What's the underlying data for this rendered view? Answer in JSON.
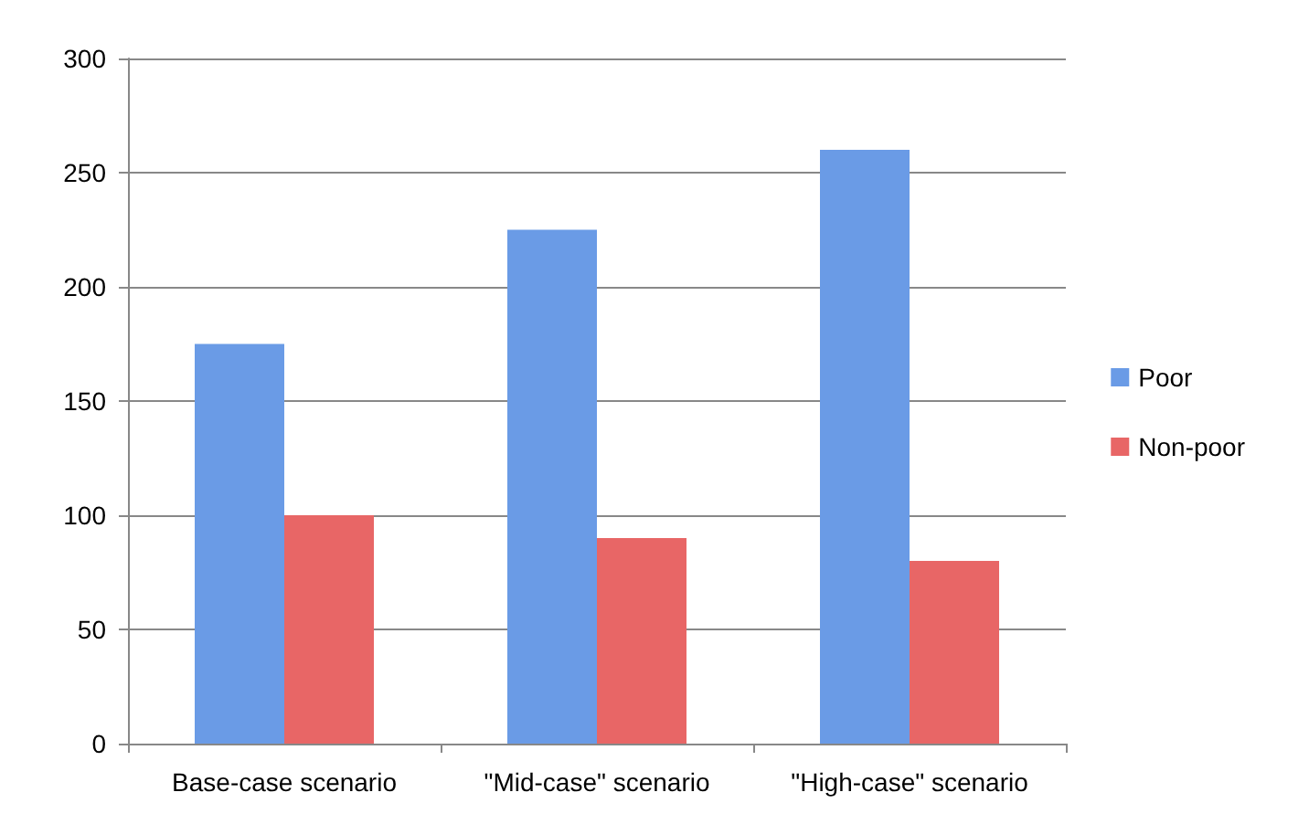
{
  "chart_data": {
    "type": "bar",
    "categories": [
      "Base-case scenario",
      "\"Mid-case\" scenario",
      "\"High-case\" scenario"
    ],
    "series": [
      {
        "name": "Poor",
        "color": "#6a9be6",
        "values": [
          175,
          225,
          260
        ]
      },
      {
        "name": "Non-poor",
        "color": "#e86666",
        "values": [
          100,
          90,
          80
        ]
      }
    ],
    "ylim": [
      0,
      300
    ],
    "yticks": [
      0,
      50,
      100,
      150,
      200,
      250,
      300
    ],
    "grid": "y",
    "legend": "right"
  }
}
